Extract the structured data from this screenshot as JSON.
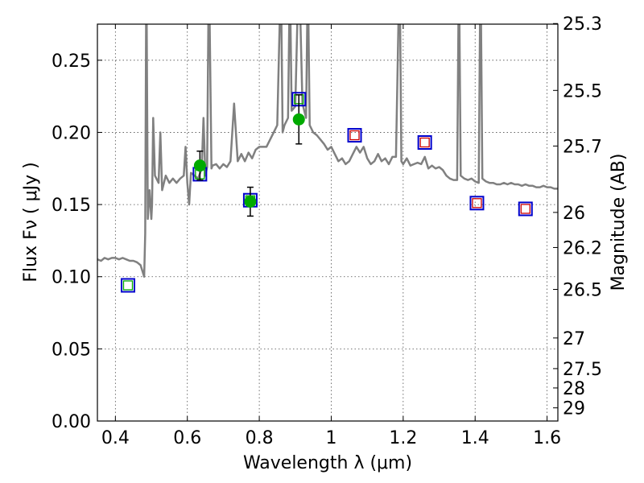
{
  "chart_data": {
    "type": "scatter",
    "title": "",
    "xlabel": "Wavelength  λ (μm)",
    "ylabel": "Flux  Fν  ( μJy )",
    "ylabel_right": "Magnitude (AB)",
    "xlim": [
      0.35,
      1.63
    ],
    "ylim": [
      0.0,
      0.275
    ],
    "grid": true,
    "colors": {
      "spectrum": "#808080",
      "observed": "#00aa00",
      "model_box": "#0000cc",
      "inner_green": "#00aa00",
      "inner_red": "#cc0000",
      "errorbar": "#000000"
    },
    "x_ticks": [
      {
        "value": 0.4,
        "label": "0.4"
      },
      {
        "value": 0.6,
        "label": "0.6"
      },
      {
        "value": 0.8,
        "label": "0.8"
      },
      {
        "value": 1.0,
        "label": "1"
      },
      {
        "value": 1.2,
        "label": "1.2"
      },
      {
        "value": 1.4,
        "label": "1.4"
      },
      {
        "value": 1.6,
        "label": "1.6"
      }
    ],
    "y_ticks": [
      {
        "value": 0.0,
        "label": "0.00"
      },
      {
        "value": 0.05,
        "label": "0.05"
      },
      {
        "value": 0.1,
        "label": "0.10"
      },
      {
        "value": 0.15,
        "label": "0.15"
      },
      {
        "value": 0.2,
        "label": "0.20"
      },
      {
        "value": 0.25,
        "label": "0.25"
      }
    ],
    "y_ticks_right": [
      {
        "value": 25.3,
        "label": "25.3"
      },
      {
        "value": 25.5,
        "label": "25.5"
      },
      {
        "value": 25.7,
        "label": "25.7"
      },
      {
        "value": 26.0,
        "label": "26"
      },
      {
        "value": 26.2,
        "label": "26.2"
      },
      {
        "value": 26.5,
        "label": "26.5"
      },
      {
        "value": 27.0,
        "label": "27"
      },
      {
        "value": 27.5,
        "label": "27.5"
      },
      {
        "value": 28.0,
        "label": "28"
      },
      {
        "value": 29.0,
        "label": "29"
      }
    ],
    "model_spectrum": {
      "x": [
        0.35,
        0.36,
        0.37,
        0.38,
        0.39,
        0.4,
        0.41,
        0.42,
        0.43,
        0.44,
        0.45,
        0.46,
        0.47,
        0.475,
        0.48,
        0.483,
        0.486,
        0.49,
        0.495,
        0.5,
        0.502,
        0.505,
        0.51,
        0.52,
        0.525,
        0.53,
        0.54,
        0.55,
        0.56,
        0.57,
        0.58,
        0.59,
        0.595,
        0.6,
        0.605,
        0.61,
        0.62,
        0.63,
        0.64,
        0.645,
        0.65,
        0.655,
        0.66,
        0.667,
        0.67,
        0.68,
        0.69,
        0.7,
        0.71,
        0.72,
        0.73,
        0.74,
        0.75,
        0.76,
        0.77,
        0.78,
        0.79,
        0.8,
        0.81,
        0.82,
        0.83,
        0.84,
        0.85,
        0.86,
        0.865,
        0.87,
        0.88,
        0.885,
        0.89,
        0.9,
        0.91,
        0.92,
        0.93,
        0.935,
        0.94,
        0.95,
        0.96,
        0.97,
        0.98,
        0.99,
        1.0,
        1.01,
        1.02,
        1.03,
        1.04,
        1.05,
        1.06,
        1.07,
        1.08,
        1.09,
        1.1,
        1.11,
        1.12,
        1.13,
        1.14,
        1.15,
        1.16,
        1.17,
        1.18,
        1.19,
        1.195,
        1.2,
        1.21,
        1.22,
        1.23,
        1.24,
        1.25,
        1.26,
        1.27,
        1.28,
        1.29,
        1.3,
        1.31,
        1.32,
        1.33,
        1.34,
        1.35,
        1.355,
        1.36,
        1.37,
        1.38,
        1.39,
        1.4,
        1.41,
        1.415,
        1.42,
        1.43,
        1.44,
        1.45,
        1.46,
        1.47,
        1.48,
        1.49,
        1.5,
        1.51,
        1.52,
        1.53,
        1.54,
        1.55,
        1.56,
        1.57,
        1.58,
        1.59,
        1.6,
        1.61,
        1.62,
        1.63
      ],
      "y": [
        0.112,
        0.111,
        0.113,
        0.112,
        0.113,
        0.113,
        0.112,
        0.113,
        0.112,
        0.111,
        0.111,
        0.11,
        0.108,
        0.104,
        0.1,
        0.13,
        0.32,
        0.14,
        0.16,
        0.14,
        0.15,
        0.21,
        0.17,
        0.165,
        0.2,
        0.16,
        0.17,
        0.165,
        0.168,
        0.165,
        0.168,
        0.17,
        0.19,
        0.165,
        0.15,
        0.172,
        0.17,
        0.168,
        0.175,
        0.21,
        0.17,
        0.176,
        0.32,
        0.175,
        0.177,
        0.178,
        0.175,
        0.178,
        0.176,
        0.18,
        0.22,
        0.18,
        0.185,
        0.18,
        0.186,
        0.182,
        0.188,
        0.19,
        0.19,
        0.19,
        0.195,
        0.2,
        0.205,
        0.31,
        0.2,
        0.205,
        0.21,
        0.31,
        0.215,
        0.218,
        0.32,
        0.22,
        0.21,
        0.31,
        0.205,
        0.2,
        0.198,
        0.195,
        0.192,
        0.188,
        0.19,
        0.185,
        0.18,
        0.182,
        0.178,
        0.18,
        0.185,
        0.19,
        0.186,
        0.19,
        0.182,
        0.178,
        0.18,
        0.185,
        0.18,
        0.182,
        0.178,
        0.183,
        0.183,
        0.32,
        0.18,
        0.178,
        0.182,
        0.177,
        0.178,
        0.179,
        0.178,
        0.183,
        0.175,
        0.177,
        0.175,
        0.176,
        0.174,
        0.17,
        0.168,
        0.167,
        0.167,
        0.32,
        0.17,
        0.168,
        0.167,
        0.168,
        0.166,
        0.165,
        0.32,
        0.168,
        0.166,
        0.165,
        0.165,
        0.164,
        0.164,
        0.165,
        0.164,
        0.165,
        0.164,
        0.164,
        0.163,
        0.164,
        0.163,
        0.163,
        0.162,
        0.162,
        0.163,
        0.162,
        0.162,
        0.161,
        0.161
      ]
    },
    "model_boxes": [
      {
        "x": 0.435,
        "y": 0.094,
        "inner": "green"
      },
      {
        "x": 0.635,
        "y": 0.171,
        "inner": "green"
      },
      {
        "x": 0.775,
        "y": 0.153,
        "inner": "green"
      },
      {
        "x": 0.91,
        "y": 0.223,
        "inner": "green"
      },
      {
        "x": 1.065,
        "y": 0.198,
        "inner": "red"
      },
      {
        "x": 1.26,
        "y": 0.193,
        "inner": "red"
      },
      {
        "x": 1.405,
        "y": 0.151,
        "inner": "red"
      },
      {
        "x": 1.54,
        "y": 0.147,
        "inner": "red"
      }
    ],
    "observed_points": [
      {
        "x": 0.635,
        "y": 0.177,
        "err": 0.01
      },
      {
        "x": 0.775,
        "y": 0.152,
        "err": 0.01
      },
      {
        "x": 0.91,
        "y": 0.209,
        "err": 0.017
      }
    ]
  }
}
